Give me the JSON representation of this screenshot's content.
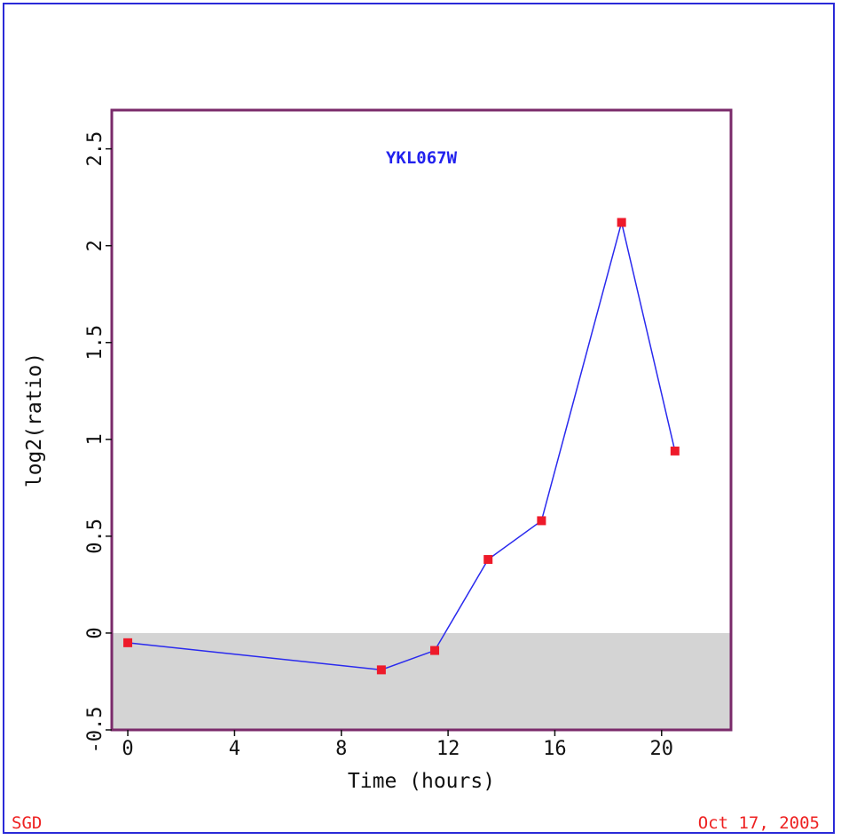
{
  "footer": {
    "left": "SGD",
    "right": "Oct 17, 2005"
  },
  "colors": {
    "frame": "#2a2ad8",
    "plot_border": "#7a2a6a",
    "line": "#2a2aee",
    "marker": "#ee1a2a",
    "negative_band": "#d4d4d4",
    "title": "#2222ee",
    "footer": "#ee2222"
  },
  "chart_data": {
    "type": "line",
    "title": "YKL067W",
    "xlabel": "Time (hours)",
    "ylabel": "log2(ratio)",
    "xlim": [
      -0.6,
      22.6
    ],
    "ylim": [
      -0.5,
      2.7
    ],
    "x_ticks": [
      0,
      4,
      8,
      12,
      16,
      20
    ],
    "x_tick_labels": [
      "0",
      "4",
      "8",
      "12",
      "16",
      "20"
    ],
    "y_ticks": [
      -0.5,
      0,
      0.5,
      1,
      1.5,
      2,
      2.5
    ],
    "y_tick_labels": [
      "-0.5",
      "0",
      "0.5",
      "1",
      "1.5",
      "2",
      "2.5"
    ],
    "negative_region_shaded": true,
    "grid": false,
    "series": [
      {
        "x": [
          0,
          9.5,
          11.5,
          13.5,
          15.5,
          18.5,
          20.5
        ],
        "y": [
          -0.05,
          -0.19,
          -0.09,
          0.38,
          0.58,
          2.12,
          0.94
        ]
      }
    ]
  }
}
